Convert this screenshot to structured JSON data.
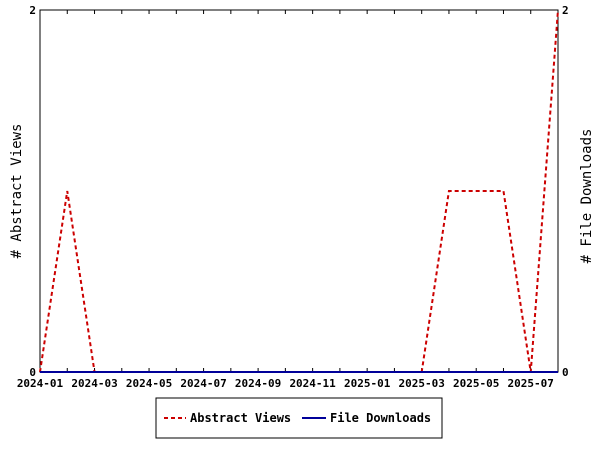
{
  "chart_data": {
    "type": "line",
    "title": "",
    "xlabel": "",
    "ylabel": "# Abstract Views",
    "y2label": "# File Downloads",
    "x": [
      "2024-01",
      "2024-02",
      "2024-03",
      "2024-04",
      "2024-05",
      "2024-06",
      "2024-07",
      "2024-08",
      "2024-09",
      "2024-10",
      "2024-11",
      "2024-12",
      "2025-01",
      "2025-02",
      "2025-03",
      "2025-04",
      "2025-05",
      "2025-06",
      "2025-07",
      "2025-08"
    ],
    "x_tick_labels": [
      "2024-01",
      "2024-03",
      "2024-05",
      "2024-07",
      "2024-09",
      "2024-11",
      "2025-01",
      "2025-03",
      "2025-05",
      "2025-07"
    ],
    "series": [
      {
        "name": "Abstract Views",
        "axis": "left",
        "color": "#cc0000",
        "dash": "dashed",
        "values": [
          0,
          1,
          0,
          0,
          0,
          0,
          0,
          0,
          0,
          0,
          0,
          0,
          0,
          0,
          0,
          1,
          1,
          1,
          0,
          2
        ]
      },
      {
        "name": "File Downloads",
        "axis": "right",
        "color": "#000099",
        "dash": "solid",
        "values": [
          0,
          0,
          0,
          0,
          0,
          0,
          0,
          0,
          0,
          0,
          0,
          0,
          0,
          0,
          0,
          0,
          0,
          0,
          0,
          0
        ]
      }
    ],
    "ylim": [
      0,
      2
    ],
    "y2lim": [
      0,
      2
    ],
    "y_tick_labels": [
      "0",
      "2"
    ],
    "y2_tick_labels": [
      "0",
      "2"
    ],
    "grid": false,
    "legend_position": "bottom"
  }
}
